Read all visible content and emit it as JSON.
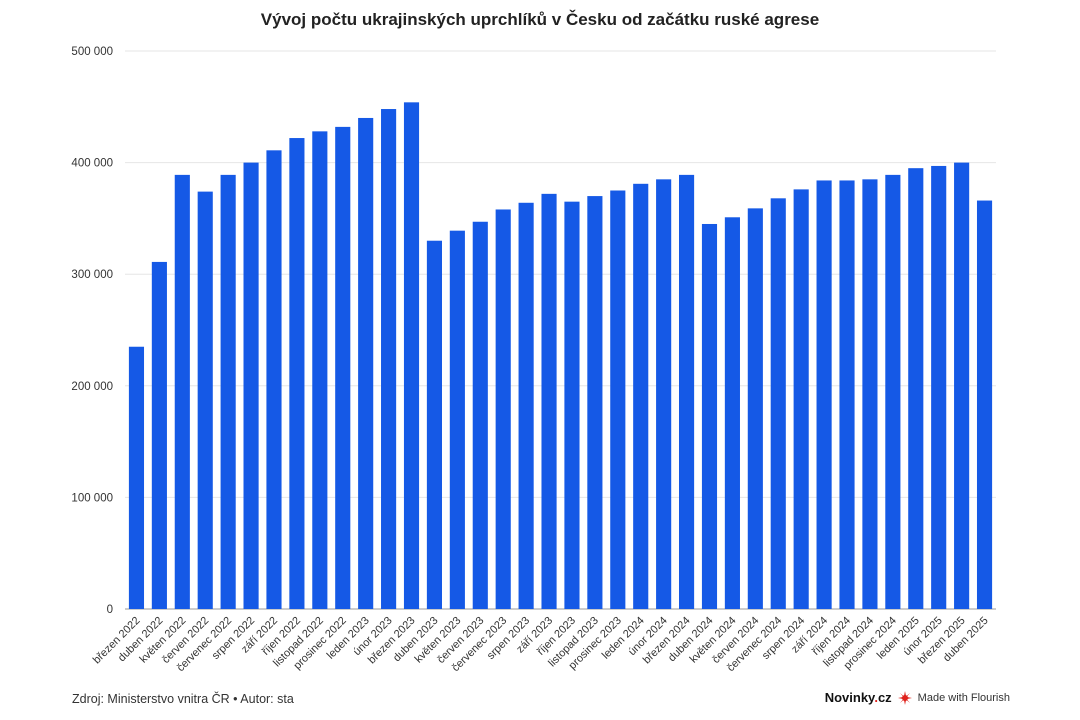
{
  "chart_data": {
    "type": "bar",
    "title": "Vývoj počtu ukrajinských uprchlíků v Česku od začátku ruské agrese",
    "xlabel": "",
    "ylabel": "",
    "ylim": [
      0,
      500000
    ],
    "yticks": [
      0,
      100000,
      200000,
      300000,
      400000,
      500000
    ],
    "ytick_labels": [
      "0",
      "100 000",
      "200 000",
      "300 000",
      "400 000",
      "500 000"
    ],
    "grid": true,
    "bar_color": "#1559e6",
    "categories": [
      "březen 2022",
      "duben 2022",
      "květen 2022",
      "červen 2022",
      "červenec 2022",
      "srpen 2022",
      "září 2022",
      "říjen 2022",
      "listopad 2022",
      "prosinec 2022",
      "leden 2023",
      "únor 2023",
      "březen 2023",
      "duben 2023",
      "květen 2023",
      "červen 2023",
      "červenec 2023",
      "srpen 2023",
      "září 2023",
      "říjen 2023",
      "listopad 2023",
      "prosinec 2023",
      "leden 2024",
      "únor 2024",
      "březen 2024",
      "duben 2024",
      "květen 2024",
      "červen 2024",
      "červenec 2024",
      "srpen 2024",
      "září 2024",
      "říjen 2024",
      "listopad 2024",
      "prosinec 2024",
      "leden 2025",
      "únor 2025",
      "březen 2025",
      "duben 2025"
    ],
    "values": [
      235000,
      311000,
      389000,
      374000,
      389000,
      400000,
      411000,
      422000,
      428000,
      432000,
      440000,
      448000,
      454000,
      330000,
      339000,
      347000,
      358000,
      364000,
      372000,
      365000,
      370000,
      375000,
      381000,
      385000,
      389000,
      345000,
      351000,
      359000,
      368000,
      376000,
      384000,
      384000,
      385000,
      389000,
      395000,
      397000,
      400000,
      366000
    ]
  },
  "footer": {
    "source": "Zdroj: Ministerstvo vnitra ČR • Autor: sta",
    "brand_name": "Novinky",
    "brand_dot": ".",
    "brand_tld": "cz",
    "made_with": "Made with Flourish"
  },
  "colors": {
    "bar": "#1559e6",
    "grid": "#e6e6e6",
    "axis": "#999999",
    "brand_accent": "#e0201b"
  }
}
